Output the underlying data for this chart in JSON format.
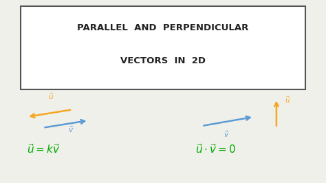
{
  "bg_color": "#f0f0ea",
  "title_line1": "PARALLEL  AND  PERPENDICULAR",
  "title_line2": "VECTORS  IN  2D",
  "title_box_color": "#555555",
  "orange_color": "#f5a623",
  "blue_color": "#5b9bd5",
  "green_color": "#00aa00",
  "dark_color": "#222222",
  "fig_width": 4.74,
  "fig_height": 2.66,
  "dpi": 100
}
